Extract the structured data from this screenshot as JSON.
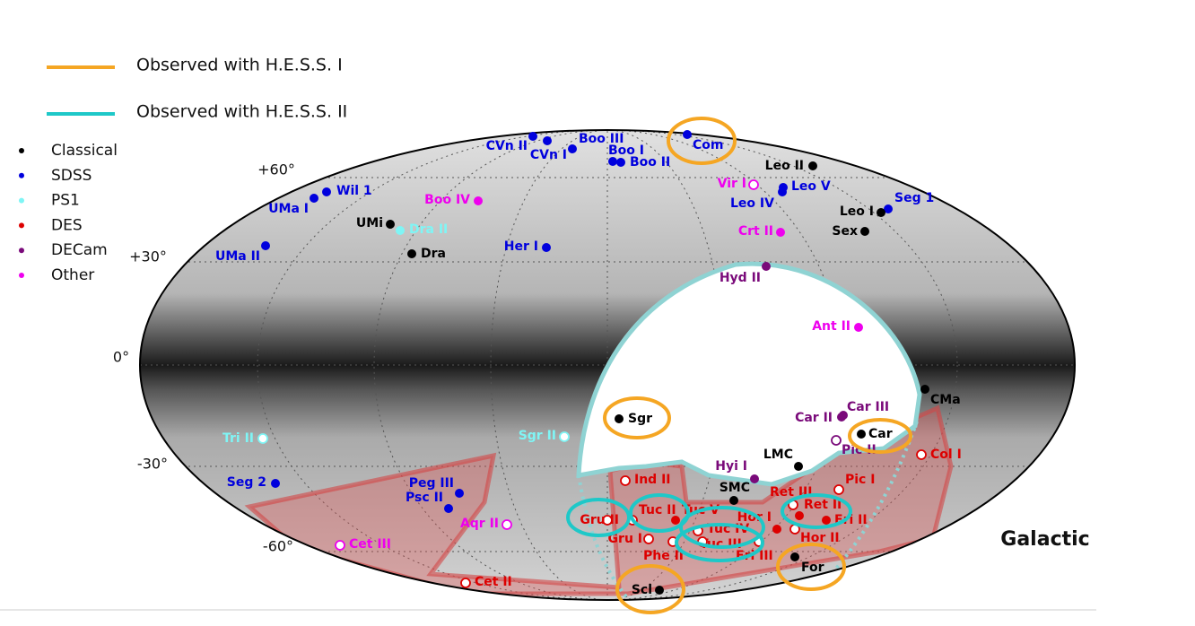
{
  "legend_lines": [
    {
      "label": "Observed with H.E.S.S. I",
      "color": "#f5a623"
    },
    {
      "label": "Observed with H.E.S.S. II",
      "color": "#1ec8c8"
    }
  ],
  "categories": [
    {
      "label": "Classical",
      "color": "#000000"
    },
    {
      "label": "SDSS",
      "color": "#0000dd"
    },
    {
      "label": "PS1",
      "color": "#7ff5f5"
    },
    {
      "label": "DES",
      "color": "#dd0000"
    },
    {
      "label": "DECam",
      "color": "#7a0a7a"
    },
    {
      "label": "Other",
      "color": "#ee00ee"
    }
  ],
  "latitude_labels": [
    "+60°",
    "+30°",
    "0°",
    "-30°",
    "-60°"
  ],
  "frame": "Galactic",
  "objects": [
    {
      "name": "Com",
      "category": 1
    },
    {
      "name": "CVn II",
      "category": 1
    },
    {
      "name": "CVn I",
      "category": 1
    },
    {
      "name": "Boo III",
      "category": 1
    },
    {
      "name": "Boo I",
      "category": 1
    },
    {
      "name": "Boo II",
      "category": 1
    },
    {
      "name": "Leo II",
      "category": 0
    },
    {
      "name": "Vir I",
      "category": 5,
      "open": true
    },
    {
      "name": "Leo V",
      "category": 1
    },
    {
      "name": "Leo IV",
      "category": 1
    },
    {
      "name": "Seg 1",
      "category": 1
    },
    {
      "name": "Leo I",
      "category": 0
    },
    {
      "name": "Sex",
      "category": 0
    },
    {
      "name": "Crt II",
      "category": 5
    },
    {
      "name": "Boo IV",
      "category": 5
    },
    {
      "name": "Wil 1",
      "category": 1
    },
    {
      "name": "UMa I",
      "category": 1
    },
    {
      "name": "UMi",
      "category": 0
    },
    {
      "name": "Dra II",
      "category": 2
    },
    {
      "name": "Dra",
      "category": 0
    },
    {
      "name": "Her I",
      "category": 1
    },
    {
      "name": "UMa II",
      "category": 1
    },
    {
      "name": "Hyd II",
      "category": 4
    },
    {
      "name": "Ant II",
      "category": 5
    },
    {
      "name": "CMa",
      "category": 0
    },
    {
      "name": "Car III",
      "category": 4
    },
    {
      "name": "Car II",
      "category": 4
    },
    {
      "name": "Car",
      "category": 0
    },
    {
      "name": "Pic II",
      "category": 4,
      "open": true
    },
    {
      "name": "Sgr",
      "category": 0
    },
    {
      "name": "LMC",
      "category": 0
    },
    {
      "name": "Hyi I",
      "category": 4
    },
    {
      "name": "Col I",
      "category": 3,
      "open": true
    },
    {
      "name": "Pic I",
      "category": 3,
      "open": true
    },
    {
      "name": "Tri II",
      "category": 2,
      "open": true
    },
    {
      "name": "Sgr II",
      "category": 2,
      "open": true
    },
    {
      "name": "Seg 2",
      "category": 1
    },
    {
      "name": "Peg III",
      "category": 1
    },
    {
      "name": "Psc II",
      "category": 1
    },
    {
      "name": "Aqr II",
      "category": 5,
      "open": true
    },
    {
      "name": "Cet III",
      "category": 5,
      "open": true
    },
    {
      "name": "Cet II",
      "category": 3,
      "open": true
    },
    {
      "name": "Ind II",
      "category": 3,
      "open": true
    },
    {
      "name": "SMC",
      "category": 0
    },
    {
      "name": "Ret III",
      "category": 3,
      "open": true
    },
    {
      "name": "Ret II",
      "category": 3
    },
    {
      "name": "Eri II",
      "category": 3
    },
    {
      "name": "Tuc II",
      "category": 3,
      "open": true
    },
    {
      "name": "Gru II",
      "category": 3,
      "open": true
    },
    {
      "name": "Tuc V",
      "category": 3
    },
    {
      "name": "Hor I",
      "category": 3
    },
    {
      "name": "Tuc IV",
      "category": 3,
      "open": true
    },
    {
      "name": "Hor II",
      "category": 3,
      "open": true
    },
    {
      "name": "Gru I",
      "category": 3,
      "open": true
    },
    {
      "name": "Tuc III",
      "category": 3,
      "open": true
    },
    {
      "name": "Eri III",
      "category": 3,
      "open": true
    },
    {
      "name": "Phe II",
      "category": 3,
      "open": true
    },
    {
      "name": "For",
      "category": 0
    },
    {
      "name": "Scl",
      "category": 0
    }
  ]
}
